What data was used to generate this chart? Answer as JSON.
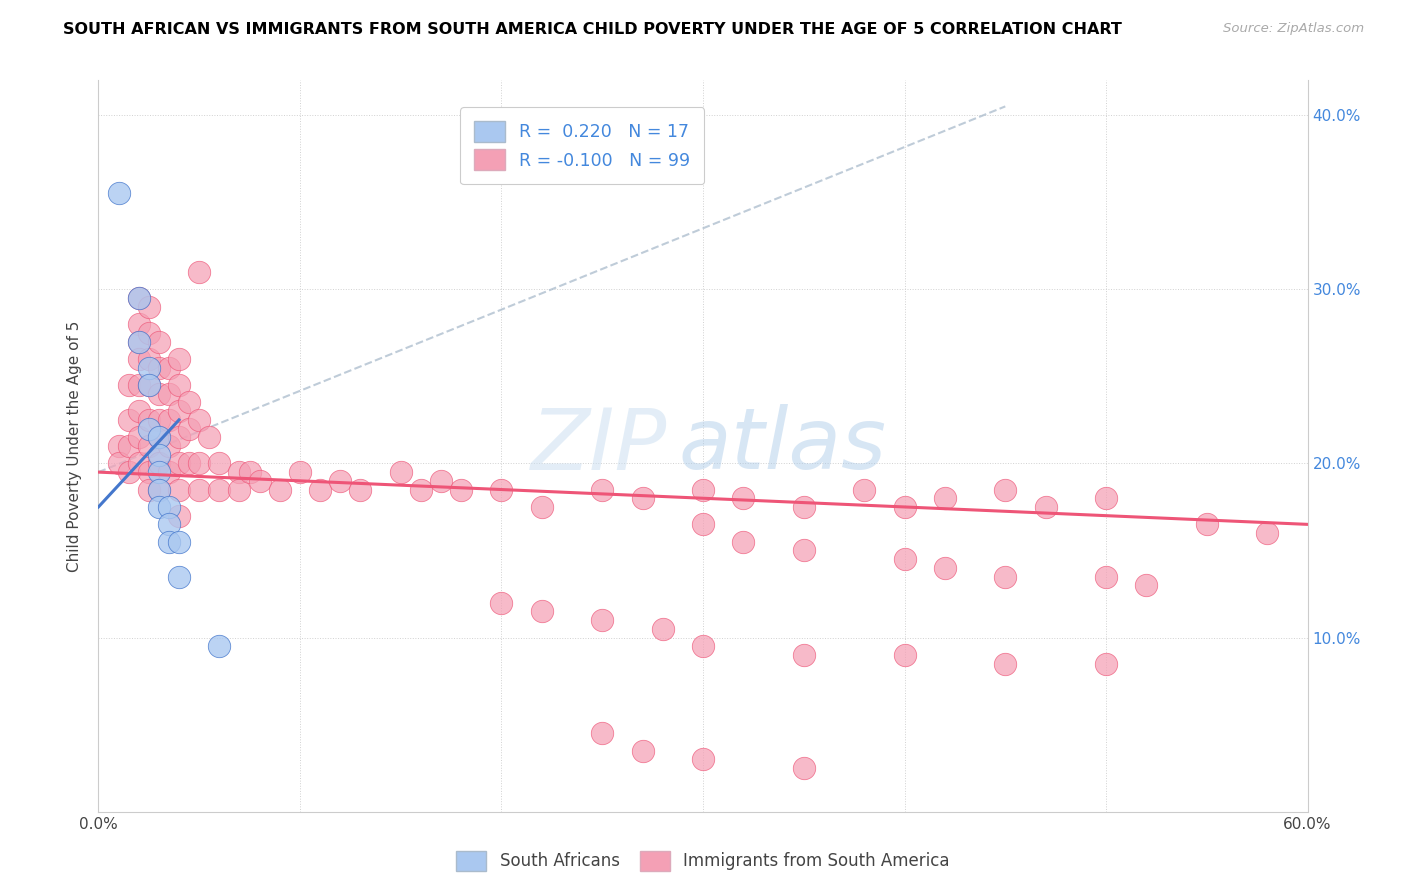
{
  "title": "SOUTH AFRICAN VS IMMIGRANTS FROM SOUTH AMERICA CHILD POVERTY UNDER THE AGE OF 5 CORRELATION CHART",
  "source": "Source: ZipAtlas.com",
  "ylabel": "Child Poverty Under the Age of 5",
  "xlim": [
    0.0,
    0.6
  ],
  "ylim": [
    0.0,
    0.42
  ],
  "color_sa": "#aac8f0",
  "color_im": "#f4a0b5",
  "line_color_sa": "#4477cc",
  "line_color_im": "#ee5577",
  "watermark_zip": "ZIP",
  "watermark_atlas": "atlas",
  "sa_points": [
    [
      0.01,
      0.355
    ],
    [
      0.02,
      0.295
    ],
    [
      0.02,
      0.27
    ],
    [
      0.025,
      0.255
    ],
    [
      0.025,
      0.245
    ],
    [
      0.025,
      0.22
    ],
    [
      0.03,
      0.215
    ],
    [
      0.03,
      0.205
    ],
    [
      0.03,
      0.195
    ],
    [
      0.03,
      0.185
    ],
    [
      0.03,
      0.175
    ],
    [
      0.035,
      0.175
    ],
    [
      0.035,
      0.165
    ],
    [
      0.035,
      0.155
    ],
    [
      0.04,
      0.155
    ],
    [
      0.04,
      0.135
    ],
    [
      0.06,
      0.095
    ]
  ],
  "im_points": [
    [
      0.01,
      0.21
    ],
    [
      0.01,
      0.2
    ],
    [
      0.015,
      0.245
    ],
    [
      0.015,
      0.225
    ],
    [
      0.015,
      0.21
    ],
    [
      0.015,
      0.195
    ],
    [
      0.02,
      0.295
    ],
    [
      0.02,
      0.28
    ],
    [
      0.02,
      0.27
    ],
    [
      0.02,
      0.26
    ],
    [
      0.02,
      0.245
    ],
    [
      0.02,
      0.23
    ],
    [
      0.02,
      0.215
    ],
    [
      0.02,
      0.2
    ],
    [
      0.025,
      0.29
    ],
    [
      0.025,
      0.275
    ],
    [
      0.025,
      0.26
    ],
    [
      0.025,
      0.245
    ],
    [
      0.025,
      0.225
    ],
    [
      0.025,
      0.21
    ],
    [
      0.025,
      0.195
    ],
    [
      0.025,
      0.185
    ],
    [
      0.03,
      0.27
    ],
    [
      0.03,
      0.255
    ],
    [
      0.03,
      0.24
    ],
    [
      0.03,
      0.225
    ],
    [
      0.03,
      0.215
    ],
    [
      0.03,
      0.2
    ],
    [
      0.03,
      0.185
    ],
    [
      0.035,
      0.255
    ],
    [
      0.035,
      0.24
    ],
    [
      0.035,
      0.225
    ],
    [
      0.035,
      0.21
    ],
    [
      0.035,
      0.195
    ],
    [
      0.04,
      0.26
    ],
    [
      0.04,
      0.245
    ],
    [
      0.04,
      0.23
    ],
    [
      0.04,
      0.215
    ],
    [
      0.04,
      0.2
    ],
    [
      0.04,
      0.185
    ],
    [
      0.04,
      0.17
    ],
    [
      0.045,
      0.235
    ],
    [
      0.045,
      0.22
    ],
    [
      0.045,
      0.2
    ],
    [
      0.05,
      0.31
    ],
    [
      0.05,
      0.225
    ],
    [
      0.05,
      0.2
    ],
    [
      0.05,
      0.185
    ],
    [
      0.055,
      0.215
    ],
    [
      0.06,
      0.2
    ],
    [
      0.06,
      0.185
    ],
    [
      0.07,
      0.195
    ],
    [
      0.07,
      0.185
    ],
    [
      0.075,
      0.195
    ],
    [
      0.08,
      0.19
    ],
    [
      0.09,
      0.185
    ],
    [
      0.1,
      0.195
    ],
    [
      0.11,
      0.185
    ],
    [
      0.12,
      0.19
    ],
    [
      0.13,
      0.185
    ],
    [
      0.15,
      0.195
    ],
    [
      0.16,
      0.185
    ],
    [
      0.17,
      0.19
    ],
    [
      0.18,
      0.185
    ],
    [
      0.2,
      0.185
    ],
    [
      0.22,
      0.175
    ],
    [
      0.25,
      0.185
    ],
    [
      0.27,
      0.18
    ],
    [
      0.3,
      0.185
    ],
    [
      0.32,
      0.18
    ],
    [
      0.35,
      0.175
    ],
    [
      0.38,
      0.185
    ],
    [
      0.4,
      0.175
    ],
    [
      0.42,
      0.18
    ],
    [
      0.45,
      0.185
    ],
    [
      0.47,
      0.175
    ],
    [
      0.5,
      0.18
    ],
    [
      0.55,
      0.165
    ],
    [
      0.58,
      0.16
    ],
    [
      0.3,
      0.165
    ],
    [
      0.32,
      0.155
    ],
    [
      0.35,
      0.15
    ],
    [
      0.4,
      0.145
    ],
    [
      0.42,
      0.14
    ],
    [
      0.45,
      0.135
    ],
    [
      0.5,
      0.135
    ],
    [
      0.52,
      0.13
    ],
    [
      0.2,
      0.12
    ],
    [
      0.22,
      0.115
    ],
    [
      0.25,
      0.11
    ],
    [
      0.28,
      0.105
    ],
    [
      0.3,
      0.095
    ],
    [
      0.35,
      0.09
    ],
    [
      0.4,
      0.09
    ],
    [
      0.45,
      0.085
    ],
    [
      0.5,
      0.085
    ],
    [
      0.25,
      0.045
    ],
    [
      0.27,
      0.035
    ],
    [
      0.3,
      0.03
    ],
    [
      0.35,
      0.025
    ]
  ],
  "dash_line": [
    [
      0.0,
      0.195
    ],
    [
      0.45,
      0.405
    ]
  ],
  "im_reg_line": [
    [
      0.0,
      0.195
    ],
    [
      0.6,
      0.165
    ]
  ],
  "sa_reg_line": [
    [
      0.0,
      0.175
    ],
    [
      0.04,
      0.225
    ]
  ]
}
